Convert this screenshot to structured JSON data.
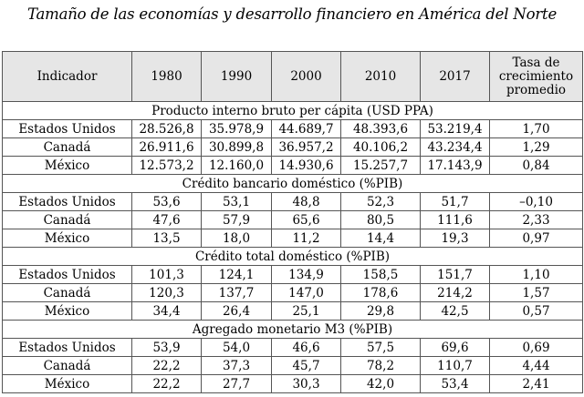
{
  "title": "Tamaño de las economías y desarrollo financiero en América del Norte",
  "table": {
    "headers": [
      "Indicador",
      "1980",
      "1990",
      "2000",
      "2010",
      "2017",
      "Tasa de crecimiento promedio"
    ],
    "sections": [
      {
        "title": "Producto interno bruto per cápita (USD PPA)",
        "rows": [
          {
            "indicator": "Estados Unidos",
            "values": [
              "28.526,8",
              "35.978,9",
              "44.689,7",
              "48.393,6",
              "53.219,4",
              "1,70"
            ]
          },
          {
            "indicator": "Canadá",
            "values": [
              "26.911,6",
              "30.899,8",
              "36.957,2",
              "40.106,2",
              "43.234,4",
              "1,29"
            ]
          },
          {
            "indicator": "México",
            "values": [
              "12.573,2",
              "12.160,0",
              "14.930,6",
              "15.257,7",
              "17.143,9",
              "0,84"
            ]
          }
        ]
      },
      {
        "title": "Crédito bancario doméstico (%PIB)",
        "rows": [
          {
            "indicator": "Estados Unidos",
            "values": [
              "53,6",
              "53,1",
              "48,8",
              "52,3",
              "51,7",
              "–0,10"
            ]
          },
          {
            "indicator": "Canadá",
            "values": [
              "47,6",
              "57,9",
              "65,6",
              "80,5",
              "111,6",
              "2,33"
            ]
          },
          {
            "indicator": "México",
            "values": [
              "13,5",
              "18,0",
              "11,2",
              "14,4",
              "19,3",
              "0,97"
            ]
          }
        ]
      },
      {
        "title": "Crédito total doméstico (%PIB)",
        "rows": [
          {
            "indicator": "Estados Unidos",
            "values": [
              "101,3",
              "124,1",
              "134,9",
              "158,5",
              "151,7",
              "1,10"
            ]
          },
          {
            "indicator": "Canadá",
            "values": [
              "120,3",
              "137,7",
              "147,0",
              "178,6",
              "214,2",
              "1,57"
            ]
          },
          {
            "indicator": "México",
            "values": [
              "34,4",
              "26,4",
              "25,1",
              "29,8",
              "42,5",
              "0,57"
            ]
          }
        ]
      },
      {
        "title": "Agregado monetario M3 (%PIB)",
        "rows": [
          {
            "indicator": "Estados Unidos",
            "values": [
              "53,9",
              "54,0",
              "46,6",
              "57,5",
              "69,6",
              "0,69"
            ]
          },
          {
            "indicator": "Canadá",
            "values": [
              "22,2",
              "37,3",
              "45,7",
              "78,2",
              "110,7",
              "4,44"
            ]
          },
          {
            "indicator": "México",
            "values": [
              "22,2",
              "27,7",
              "30,3",
              "42,0",
              "53,4",
              "2,41"
            ]
          }
        ]
      }
    ]
  }
}
